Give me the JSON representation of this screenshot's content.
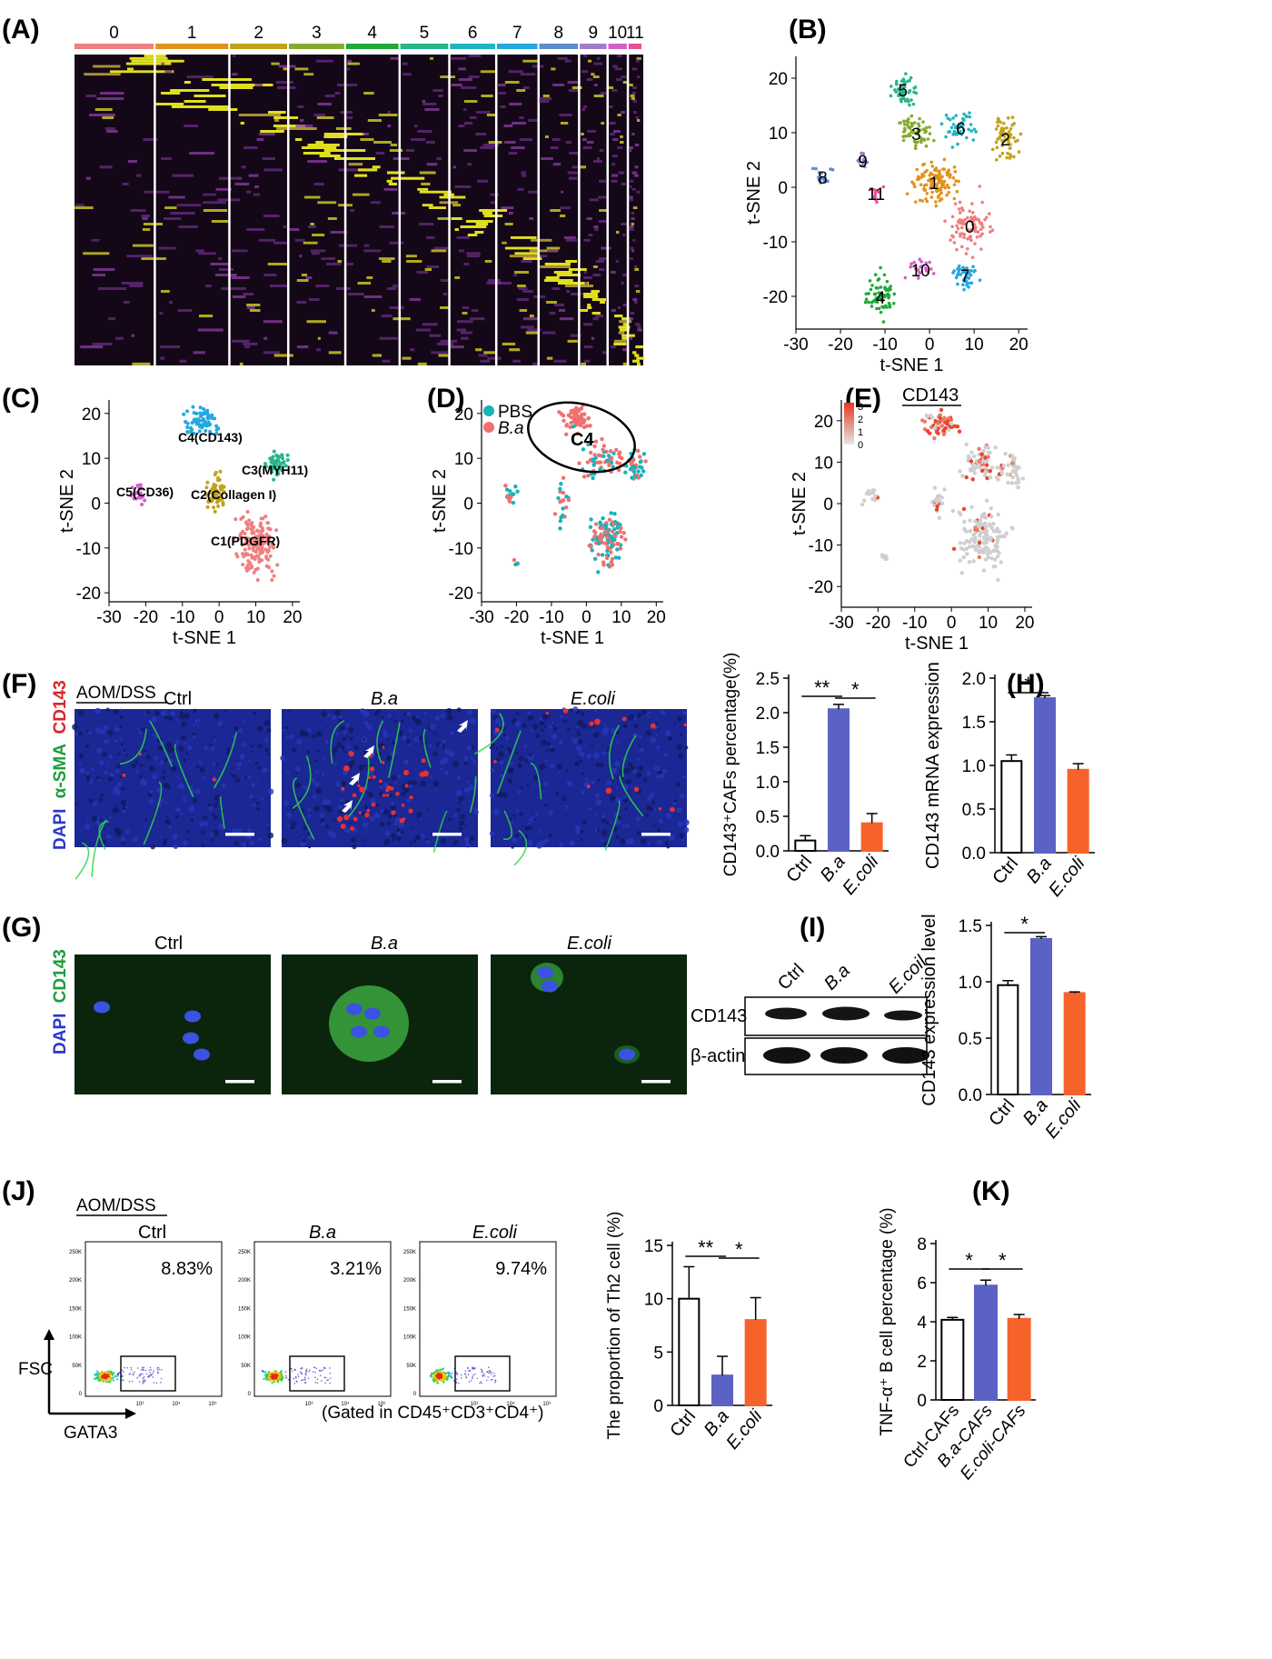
{
  "panels": {
    "A": "(A)",
    "B": "(B)",
    "C": "(C)",
    "D": "(D)",
    "E": "(E)",
    "F": "(F)",
    "G": "(G)",
    "H": "(H)",
    "I": "(I)",
    "J": "(J)",
    "K": "(K)"
  },
  "colors": {
    "c0": "#F07F7F",
    "c1": "#E2921C",
    "c2": "#C2A21A",
    "c3": "#84AC2C",
    "c4": "#1FAA3A",
    "c5": "#27B58C",
    "c6": "#22B4C0",
    "c7": "#23A8E0",
    "c8": "#5C8CCD",
    "c9": "#A27CCB",
    "c10": "#D65EC8",
    "c11": "#E9509A",
    "pbs": "#17B3B9",
    "ba": "#F07070",
    "ctrl_bar": "#ffffff",
    "ba_bar": "#5B62C3",
    "ecoli_bar": "#F5632A"
  },
  "heatmap": {
    "clusters": [
      "0",
      "1",
      "2",
      "3",
      "4",
      "5",
      "6",
      "7",
      "8",
      "9",
      "10",
      "11"
    ]
  },
  "fig_text": {
    "aom": "AOM/DSS",
    "ctrl": "Ctrl",
    "ba": "B.a",
    "ecoli": "E.coli",
    "ecoil": "E.coil",
    "f_stain_dapi": "DAPI",
    "f_stain_sma": "α-SMA",
    "f_stain_cd143": "CD143",
    "g_stain_dapi": "DAPI",
    "g_stain_cd143": "CD143",
    "cd143": "CD143",
    "bactin": "β-actin",
    "fsc": "FSC",
    "gata3": "GATA3",
    "gate": "(Gated in CD45⁺CD3⁺CD4⁺)",
    "flow_ctrl_pct": "8.83%",
    "flow_ba_pct": "3.21%",
    "flow_ecoli_pct": "9.74%",
    "flow_ticks": [
      "250K",
      "200K",
      "150K",
      "100K",
      "50K",
      "0"
    ],
    "flow_xticks": [
      "10³",
      "10⁴",
      "10⁵"
    ],
    "pbs": "PBS",
    "c4": "C4",
    "cd143_title": "CD143",
    "legend_e": [
      "3",
      "2",
      "1",
      "0"
    ],
    "cluster_labels_c": [
      "C4(CD143)",
      "C3(MYH11)",
      "C5(CD36)",
      "C2(Collagen I)",
      "C1(PDGFR)"
    ]
  },
  "chart_data": [
    {
      "panel": "B",
      "type": "scatter",
      "xlabel": "t-SNE 1",
      "ylabel": "t-SNE 2",
      "xticks": [
        -30,
        -20,
        -10,
        0,
        10,
        20
      ],
      "yticks": [
        20,
        10,
        0,
        -10,
        -20
      ],
      "xlim": [
        -30,
        22
      ],
      "ylim": [
        -26,
        24
      ],
      "cluster_centers": [
        {
          "name": "0",
          "x": 9,
          "y": -7
        },
        {
          "name": "1",
          "x": 1,
          "y": 1
        },
        {
          "name": "2",
          "x": 17,
          "y": 9
        },
        {
          "name": "3",
          "x": -3,
          "y": 10
        },
        {
          "name": "4",
          "x": -11,
          "y": -20
        },
        {
          "name": "5",
          "x": -6,
          "y": 18
        },
        {
          "name": "6",
          "x": 7,
          "y": 11
        },
        {
          "name": "7",
          "x": 8,
          "y": -16
        },
        {
          "name": "8",
          "x": -24,
          "y": 2
        },
        {
          "name": "9",
          "x": -15,
          "y": 5
        },
        {
          "name": "10",
          "x": -2,
          "y": -15
        },
        {
          "name": "11",
          "x": -12,
          "y": -1
        }
      ]
    },
    {
      "panel": "C",
      "type": "scatter",
      "xlabel": "t-SNE 1",
      "ylabel": "t-SNE 2",
      "xticks": [
        -30,
        -20,
        -10,
        0,
        10,
        20
      ],
      "yticks": [
        20,
        10,
        0,
        -10,
        -20
      ],
      "xlim": [
        -30,
        22
      ],
      "ylim": [
        -22,
        23
      ],
      "series": [
        {
          "name": "C4(CD143)",
          "x": -5,
          "y": 18
        },
        {
          "name": "C3(MYH11)",
          "x": 16,
          "y": 9
        },
        {
          "name": "C5(CD36)",
          "x": -22,
          "y": 2
        },
        {
          "name": "C2(Collagen I)",
          "x": -1,
          "y": 2
        },
        {
          "name": "C1(PDGFR)",
          "x": 10,
          "y": -9
        }
      ]
    },
    {
      "panel": "D",
      "type": "scatter",
      "xlabel": "t-SNE 1",
      "ylabel": "t-SNE 2",
      "xticks": [
        -30,
        -20,
        -10,
        0,
        10,
        20
      ],
      "yticks": [
        20,
        10,
        0,
        -10,
        -20
      ],
      "xlim": [
        -30,
        22
      ],
      "ylim": [
        -22,
        23
      ],
      "series": [
        {
          "name": "PBS"
        },
        {
          "name": "B.a"
        }
      ]
    },
    {
      "panel": "E",
      "type": "scatter",
      "title": "CD143",
      "xlabel": "t-SNE 1",
      "ylabel": "t-SNE 2",
      "xticks": [
        -30,
        -20,
        -10,
        0,
        10,
        20
      ],
      "yticks": [
        20,
        10,
        0,
        -10,
        -20
      ],
      "xlim": [
        -30,
        22
      ],
      "ylim": [
        -25,
        25
      ]
    },
    {
      "panel": "F",
      "type": "bar",
      "ylabel": "CD143⁺CAFs percentage(%)",
      "categories": [
        "Ctrl",
        "B.a",
        "E.coli"
      ],
      "values": [
        0.15,
        2.05,
        0.4
      ],
      "errors": [
        0.07,
        0.07,
        0.14
      ],
      "ylim": [
        0,
        2.5
      ],
      "yticks": [
        0,
        0.5,
        1.0,
        1.5,
        2.0,
        2.5
      ],
      "significance": [
        {
          "from": 0,
          "to": 1,
          "label": "**"
        },
        {
          "from": 1,
          "to": 2,
          "label": "*"
        }
      ]
    },
    {
      "panel": "H",
      "type": "bar",
      "ylabel": "CD143 mRNA expression",
      "categories": [
        "Ctrl",
        "B.a",
        "E.coli"
      ],
      "values": [
        1.05,
        1.77,
        0.95
      ],
      "errors": [
        0.07,
        0.03,
        0.07
      ],
      "ylim": [
        0,
        2.0
      ],
      "yticks": [
        0,
        0.5,
        1.0,
        1.5,
        2.0
      ],
      "significance": [
        {
          "from": 0,
          "to": 1,
          "label": "*"
        }
      ]
    },
    {
      "panel": "I",
      "type": "bar",
      "ylabel": "CD143 expression level",
      "categories": [
        "Ctrl",
        "B.a",
        "E.coli"
      ],
      "values": [
        0.97,
        1.38,
        0.9
      ],
      "errors": [
        0.04,
        0.02,
        0.01
      ],
      "ylim": [
        0,
        1.5
      ],
      "yticks": [
        0,
        0.5,
        1.0,
        1.5
      ],
      "significance": [
        {
          "from": 0,
          "to": 1,
          "label": "*"
        }
      ]
    },
    {
      "panel": "J",
      "type": "bar",
      "ylabel": "The proportion of Th2 cell (%)",
      "categories": [
        "Ctrl",
        "B.a",
        "E.coli"
      ],
      "values": [
        10,
        2.8,
        8
      ],
      "errors": [
        3,
        1.8,
        2.1
      ],
      "ylim": [
        0,
        15
      ],
      "yticks": [
        0,
        5,
        10,
        15
      ],
      "significance": [
        {
          "from": 0,
          "to": 1,
          "label": "**"
        },
        {
          "from": 1,
          "to": 2,
          "label": "*"
        }
      ]
    },
    {
      "panel": "K",
      "type": "bar",
      "ylabel": "TNF-α⁺ B cell percentage (%)",
      "categories": [
        "Ctrl-CAFs",
        "B.a-CAFs",
        "E.coli-CAFs"
      ],
      "values": [
        4.1,
        5.85,
        4.15
      ],
      "errors": [
        0.12,
        0.28,
        0.22
      ],
      "ylim": [
        0,
        8
      ],
      "yticks": [
        0,
        2,
        4,
        6,
        8
      ],
      "significance": [
        {
          "from": 0,
          "to": 1,
          "label": "*"
        },
        {
          "from": 1,
          "to": 2,
          "label": "*"
        }
      ]
    }
  ]
}
